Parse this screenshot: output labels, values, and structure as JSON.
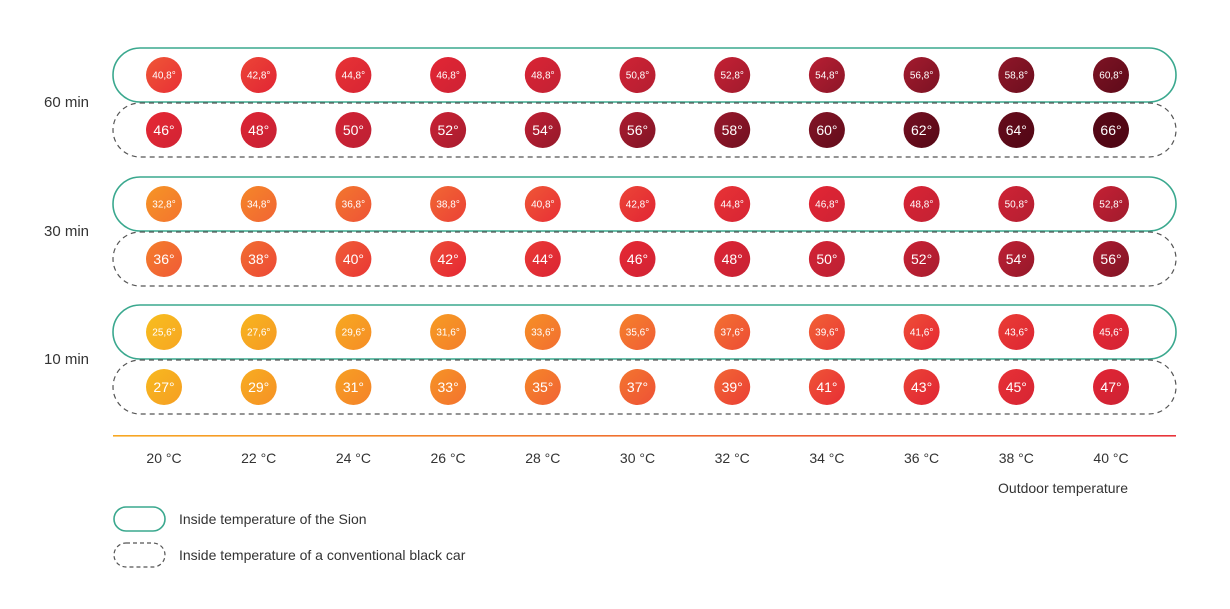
{
  "chart_data": {
    "type": "table",
    "x_label": "Outdoor temperature",
    "x_categories": [
      "20 °C",
      "22 °C",
      "24 °C",
      "26 °C",
      "28 °C",
      "30 °C",
      "32 °C",
      "34 °C",
      "36 °C",
      "38 °C",
      "40 °C"
    ],
    "groups": [
      {
        "label": "60 min",
        "sion": [
          "40,8°",
          "42,8°",
          "44,8°",
          "46,8°",
          "48,8°",
          "50,8°",
          "52,8°",
          "54,8°",
          "56,8°",
          "58,8°",
          "60,8°"
        ],
        "black_car": [
          "46°",
          "48°",
          "50°",
          "52°",
          "54°",
          "56°",
          "58°",
          "60°",
          "62°",
          "64°",
          "66°"
        ]
      },
      {
        "label": "30 min",
        "sion": [
          "32,8°",
          "34,8°",
          "36,8°",
          "38,8°",
          "40,8°",
          "42,8°",
          "44,8°",
          "46,8°",
          "48,8°",
          "50,8°",
          "52,8°"
        ],
        "black_car": [
          "36°",
          "38°",
          "40°",
          "42°",
          "44°",
          "46°",
          "48°",
          "50°",
          "52°",
          "54°",
          "56°"
        ]
      },
      {
        "label": "10 min",
        "sion": [
          "25,6°",
          "27,6°",
          "29,6°",
          "31,6°",
          "33,6°",
          "35,6°",
          "37,6°",
          "39,6°",
          "41,6°",
          "43,6°",
          "45,6°"
        ],
        "black_car": [
          "27°",
          "29°",
          "31°",
          "33°",
          "35°",
          "37°",
          "39°",
          "41°",
          "43°",
          "45°",
          "47°"
        ]
      }
    ],
    "legend": [
      {
        "style": "solid-teal",
        "label": "Inside temperature of the Sion"
      },
      {
        "style": "dashed-gray",
        "label": "Inside temperature of a conventional black car"
      }
    ],
    "colors": {
      "sion_outline": "#3aa88e",
      "car_outline": "#555555",
      "axis_gradient_start": "#f7a823",
      "axis_gradient_end": "#e8343a"
    }
  }
}
